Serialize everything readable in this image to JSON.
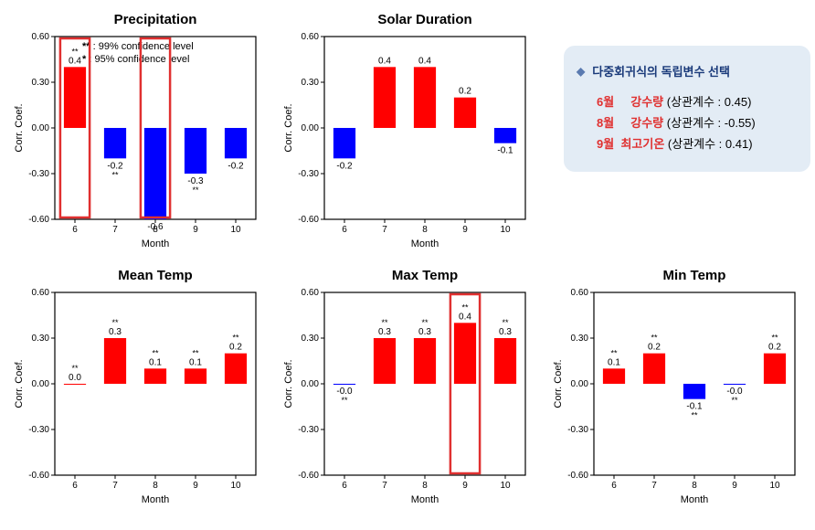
{
  "global": {
    "ylim": [
      -0.6,
      0.6
    ],
    "ytick_step": 0.3,
    "ytick_labels": [
      "-0.60",
      "-0.30",
      "0.00",
      "0.30",
      "0.60"
    ],
    "xticks": [
      6,
      7,
      8,
      9,
      10
    ],
    "xlabel": "Month",
    "ylabel": "Corr. Coef.",
    "pos_color": "#ff0000",
    "neg_color": "#0000ff",
    "axis_color": "#000000",
    "bg_color": "#ffffff",
    "bar_width": 0.55,
    "title_fontsize": 15,
    "label_fontsize": 11,
    "tick_fontsize": 10
  },
  "legend": {
    "line1_mark": "**",
    "line1_text": " : 99% confidence level",
    "line2_mark": "*",
    "line2_text": " : 95% confidence level"
  },
  "charts": [
    {
      "title": "Precipitation",
      "values": [
        0.4,
        -0.2,
        -0.6,
        -0.3,
        -0.2
      ],
      "sig": [
        "**",
        "**",
        null,
        "**",
        null
      ],
      "highlight_indices": [
        0,
        2
      ],
      "show_legend": true
    },
    {
      "title": "Solar Duration",
      "values": [
        -0.2,
        0.4,
        0.4,
        0.2,
        -0.1
      ],
      "sig": [
        null,
        null,
        null,
        null,
        null
      ],
      "highlight_indices": []
    },
    {
      "title": "Mean Temp",
      "values": [
        0.0,
        0.3,
        0.1,
        0.1,
        0.2
      ],
      "sig": [
        "**",
        "**",
        "**",
        "**",
        "**"
      ],
      "force_pos": true,
      "highlight_indices": []
    },
    {
      "title": "Max Temp",
      "values": [
        -0.0,
        0.3,
        0.3,
        0.4,
        0.3
      ],
      "sig": [
        "**",
        "**",
        "**",
        "**",
        "**"
      ],
      "highlight_indices": [
        3
      ]
    },
    {
      "title": "Min Temp",
      "values": [
        0.1,
        0.2,
        -0.1,
        -0.0,
        0.2
      ],
      "sig": [
        "**",
        "**",
        "**",
        "**",
        "**"
      ],
      "highlight_indices": []
    }
  ],
  "annotation": {
    "title": "다중회귀식의 독립변수 선택",
    "lines": [
      {
        "month": "6월",
        "name": "강수량",
        "desc": "(상관계수 : 0.45)"
      },
      {
        "month": "8월",
        "name": "강수량",
        "desc": "(상관계수 : -0.55)"
      },
      {
        "month": "9월",
        "name": "최고기온",
        "desc": "(상관계수 : 0.41)"
      }
    ]
  }
}
